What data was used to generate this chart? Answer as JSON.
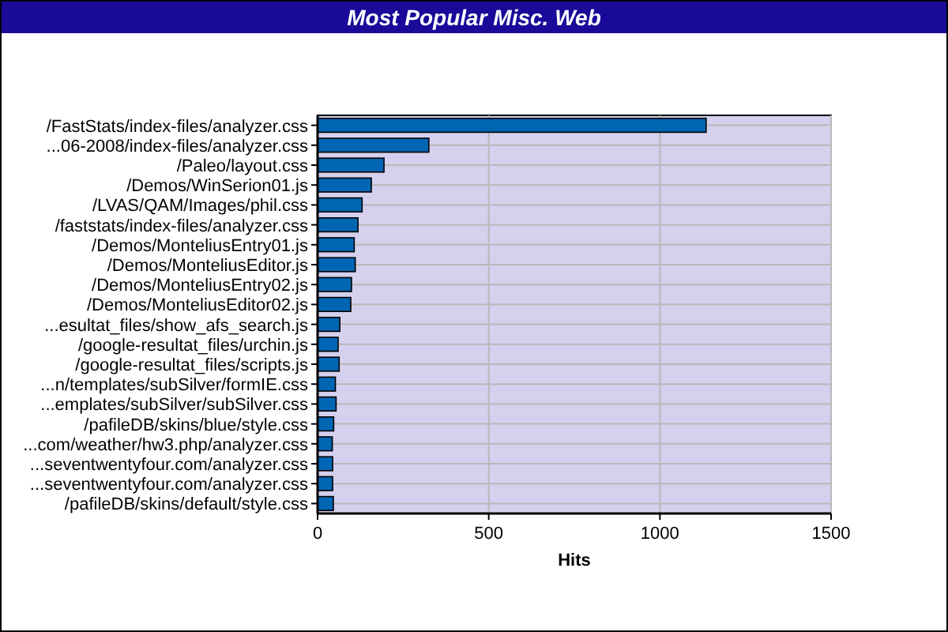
{
  "chart_data": {
    "type": "bar",
    "orientation": "horizontal",
    "title": "Most Popular Misc. Web",
    "xlabel": "Hits",
    "categories": [
      "/FastStats/index-files/analyzer.css",
      "...06-2008/index-files/analyzer.css",
      "/Paleo/layout.css",
      "/Demos/WinSerion01.js",
      "/LVAS/QAM/Images/phil.css",
      "/faststats/index-files/analyzer.css",
      "/Demos/MonteliusEntry01.js",
      "/Demos/MonteliusEditor.js",
      "/Demos/MonteliusEntry02.js",
      "/Demos/MonteliusEditor02.js",
      "...esultat_files/show_afs_search.js",
      "/google-resultat_files/urchin.js",
      "/google-resultat_files/scripts.js",
      "...n/templates/subSilver/formIE.css",
      "...emplates/subSilver/subSilver.css",
      "/pafileDB/skins/blue/style.css",
      "...com/weather/hw3.php/analyzer.css",
      "...seventwentyfour.com/analyzer.css",
      "...seventwentyfour.com/analyzer.css",
      "/pafileDB/skins/default/style.css"
    ],
    "values": [
      1135,
      325,
      194,
      157,
      130,
      118,
      107,
      110,
      99,
      97,
      65,
      60,
      63,
      52,
      54,
      47,
      43,
      44,
      44,
      46
    ],
    "color": "#0066b3",
    "xlim": [
      0,
      1500
    ],
    "xticks": [
      0,
      500,
      1000,
      1500
    ],
    "grid": true
  }
}
